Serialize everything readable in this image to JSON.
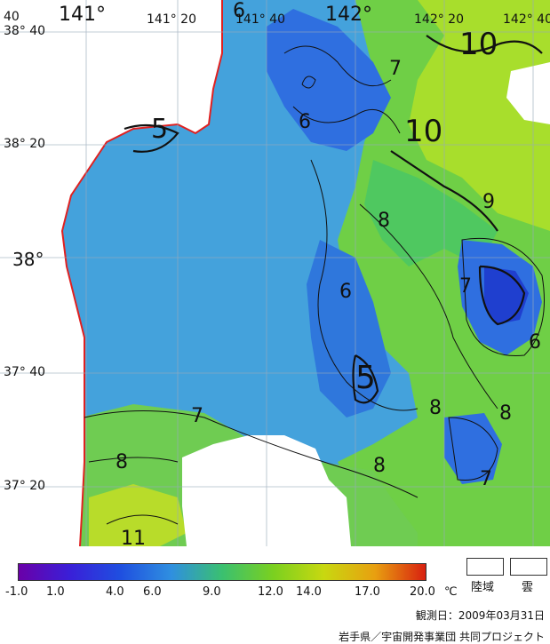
{
  "map": {
    "lat_labels": [
      "38° 40",
      "38° 20",
      "38°",
      "37° 40",
      "37° 20"
    ],
    "lon_labels": [
      "141°",
      "141° 20",
      "141° 40",
      "142°",
      "142° 20",
      "142° 40"
    ],
    "corner_label": "40",
    "contour_labels": [
      "6",
      "7",
      "10",
      "5",
      "10",
      "6",
      "9",
      "8",
      "7",
      "6",
      "5",
      "6",
      "8",
      "7",
      "8",
      "8",
      "7",
      "11"
    ]
  },
  "colorbar": {
    "ticks": [
      "-1.0",
      "1.0",
      "4.0",
      "6.0",
      "9.0",
      "12.0",
      "14.0",
      "17.0",
      "20.0"
    ],
    "unit": "℃",
    "colors": [
      "#6a00a8",
      "#3a1fd8",
      "#1f4fe0",
      "#2f8fe0",
      "#3ac070",
      "#7ad020",
      "#c8d810",
      "#e8a010",
      "#d82010"
    ]
  },
  "legend": {
    "land_label": "陸域",
    "cloud_label": "雲"
  },
  "footer": {
    "date": "観測日：2009年03月31日",
    "credit": "岩手県／宇宙開発事業団 共同プロジェクト"
  }
}
